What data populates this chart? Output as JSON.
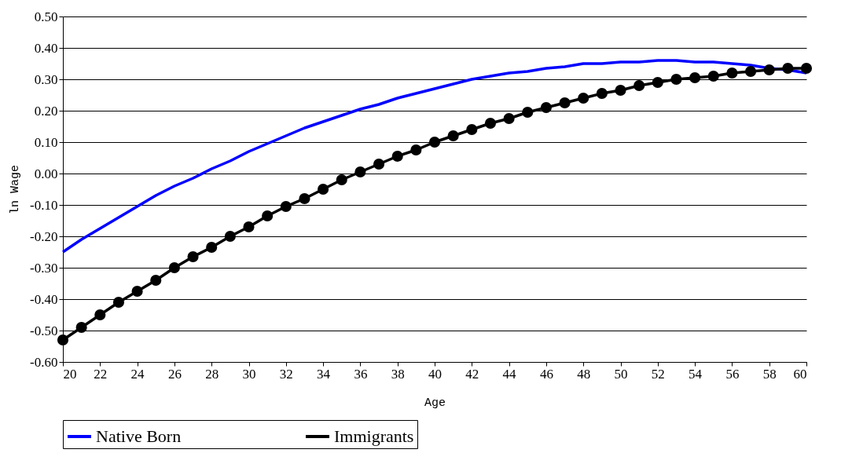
{
  "chart_data": {
    "type": "line",
    "xlabel": "Age",
    "ylabel": "ln Wage",
    "x": [
      20,
      21,
      22,
      23,
      24,
      25,
      26,
      27,
      28,
      29,
      30,
      31,
      32,
      33,
      34,
      35,
      36,
      37,
      38,
      39,
      40,
      41,
      42,
      43,
      44,
      45,
      46,
      47,
      48,
      49,
      50,
      51,
      52,
      53,
      54,
      55,
      56,
      57,
      58,
      59,
      60
    ],
    "series": [
      {
        "name": "Native Born",
        "color": "#0000ff",
        "marker": "none",
        "values": [
          -0.25,
          -0.21,
          -0.175,
          -0.14,
          -0.105,
          -0.07,
          -0.04,
          -0.015,
          0.015,
          0.04,
          0.07,
          0.095,
          0.12,
          0.145,
          0.165,
          0.185,
          0.205,
          0.22,
          0.24,
          0.255,
          0.27,
          0.285,
          0.3,
          0.31,
          0.32,
          0.325,
          0.335,
          0.34,
          0.35,
          0.35,
          0.355,
          0.355,
          0.36,
          0.36,
          0.355,
          0.355,
          0.35,
          0.345,
          0.335,
          0.33,
          0.32
        ]
      },
      {
        "name": "Immigrants",
        "color": "#000000",
        "marker": "circle",
        "values": [
          -0.53,
          -0.49,
          -0.45,
          -0.41,
          -0.375,
          -0.34,
          -0.3,
          -0.265,
          -0.235,
          -0.2,
          -0.17,
          -0.135,
          -0.105,
          -0.08,
          -0.05,
          -0.02,
          0.005,
          0.03,
          0.055,
          0.075,
          0.1,
          0.12,
          0.14,
          0.16,
          0.175,
          0.195,
          0.21,
          0.225,
          0.24,
          0.255,
          0.265,
          0.28,
          0.29,
          0.3,
          0.305,
          0.31,
          0.32,
          0.325,
          0.33,
          0.335,
          0.335
        ]
      }
    ],
    "xlim": [
      20,
      60
    ],
    "xticks": [
      20,
      22,
      24,
      26,
      28,
      30,
      32,
      34,
      36,
      38,
      40,
      42,
      44,
      46,
      48,
      50,
      52,
      54,
      56,
      58,
      60
    ],
    "ylim": [
      -0.6,
      0.5
    ],
    "yticks": [
      {
        "value": -0.6,
        "label": "-0.60"
      },
      {
        "value": -0.5,
        "label": "-0.50"
      },
      {
        "value": -0.4,
        "label": "-0.40"
      },
      {
        "value": -0.3,
        "label": "-0.30"
      },
      {
        "value": -0.2,
        "label": "-0.20"
      },
      {
        "value": -0.1,
        "label": "-0.10"
      },
      {
        "value": 0,
        "label": "0.00"
      },
      {
        "value": 0.1,
        "label": "0.10"
      },
      {
        "value": 0.2,
        "label": "0.20"
      },
      {
        "value": 0.3,
        "label": "0.30"
      },
      {
        "value": 0.4,
        "label": "0.40"
      },
      {
        "value": 0.5,
        "label": "0.50"
      }
    ],
    "grid": "y",
    "legend": "bottom",
    "line_style": "solid"
  }
}
